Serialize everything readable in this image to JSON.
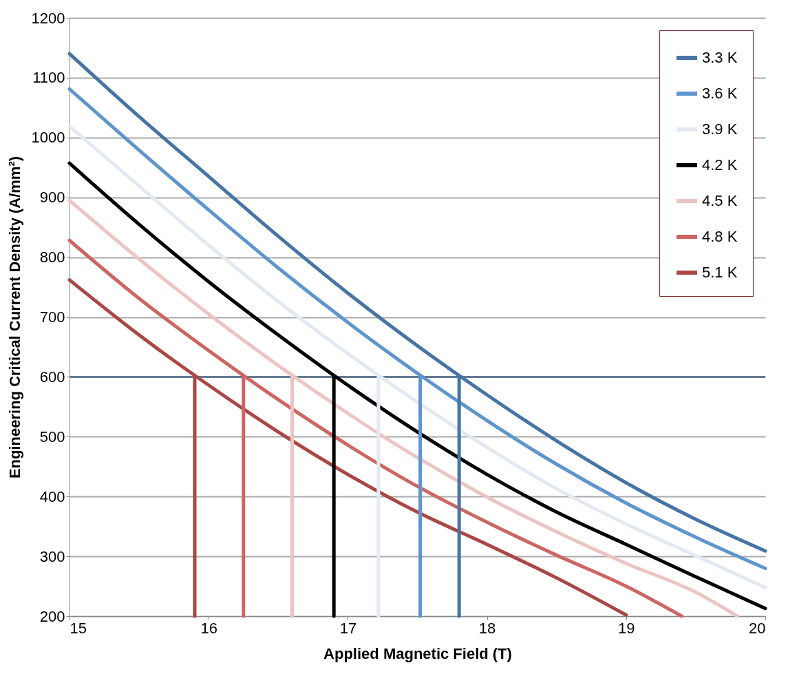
{
  "chart_data": {
    "type": "line",
    "xlabel": "Applied Magnetic Field (T)",
    "ylabel": "Engineering Critical Current Density (A/mm²)",
    "xlim": [
      15,
      20
    ],
    "xticks": [
      15,
      16,
      17,
      18,
      19,
      20
    ],
    "ylim": [
      200,
      1200
    ],
    "yticks": [
      200,
      300,
      400,
      500,
      600,
      700,
      800,
      900,
      1000,
      1100,
      1200
    ],
    "grid": "y",
    "legend": "top right",
    "ref_lines": [
      {
        "axis": "y",
        "value": 600,
        "color": "#4a6584"
      }
    ],
    "series": [
      {
        "name": "3.3 K",
        "color": "#4674a5",
        "x": [
          15,
          15.5,
          16,
          16.5,
          17,
          17.5,
          18,
          18.5,
          19,
          19.5,
          20
        ],
        "values": [
          1140,
          1035,
          935,
          835,
          740,
          652,
          570,
          493,
          423,
          362,
          309
        ]
      },
      {
        "name": "3.6 K",
        "color": "#5f95cd",
        "x": [
          15,
          15.5,
          16,
          16.5,
          17,
          17.5,
          18,
          18.5,
          19,
          19.5,
          20
        ],
        "values": [
          1081,
          979,
          879,
          782,
          691,
          606,
          527,
          454,
          389,
          332,
          280
        ]
      },
      {
        "name": "3.9 K",
        "color": "#e3e9f3",
        "x": [
          15,
          15.5,
          16,
          16.5,
          17,
          17.5,
          18,
          18.5,
          19,
          19.5,
          20
        ],
        "values": [
          1019,
          919,
          820,
          726,
          639,
          558,
          482,
          413,
          354,
          301,
          248
        ]
      },
      {
        "name": "4.2 K",
        "color": "#000000",
        "x": [
          15,
          15.5,
          16,
          16.5,
          17,
          17.5,
          18,
          18.5,
          19,
          19.5,
          20
        ],
        "values": [
          957,
          855,
          759,
          670,
          586,
          508,
          437,
          374,
          320,
          266,
          213
        ]
      },
      {
        "name": "4.5 K",
        "color": "#ecc4c2",
        "x": [
          15,
          15.5,
          16,
          16.5,
          17,
          17.5,
          18,
          18.5,
          19,
          19.5,
          19.8
        ],
        "values": [
          895,
          797,
          705,
          619,
          539,
          465,
          399,
          341,
          288,
          240,
          200
        ]
      },
      {
        "name": "4.8 K",
        "color": "#cd6663",
        "x": [
          15,
          15.5,
          16,
          16.5,
          17,
          17.5,
          18,
          18.5,
          19,
          19.4
        ],
        "values": [
          828,
          731,
          644,
          562,
          486,
          417,
          357,
          302,
          250,
          200
        ]
      },
      {
        "name": "5.1 K",
        "color": "#aa4744",
        "x": [
          15,
          15.5,
          16,
          16.5,
          17,
          17.5,
          18,
          18.5,
          19
        ],
        "values": [
          762,
          670,
          586,
          508,
          437,
          374,
          320,
          264,
          202
        ]
      },
      {
        "type": "line",
        "color": "#aa4744",
        "x": [
          15.9,
          15.9
        ],
        "values": [
          200,
          600
        ]
      },
      {
        "type": "line",
        "color": "#cd6663",
        "x": [
          16.25,
          16.25
        ],
        "values": [
          200,
          600
        ]
      },
      {
        "type": "line",
        "color": "#ecc4c2",
        "x": [
          16.6,
          16.6
        ],
        "values": [
          200,
          600
        ]
      },
      {
        "type": "line",
        "color": "#000000",
        "x": [
          16.9,
          16.9
        ],
        "values": [
          200,
          600
        ]
      },
      {
        "type": "line",
        "color": "#e3e9f3",
        "x": [
          17.22,
          17.22
        ],
        "values": [
          200,
          600
        ]
      },
      {
        "type": "line",
        "color": "#5f95cd",
        "x": [
          17.52,
          17.52
        ],
        "values": [
          200,
          600
        ]
      },
      {
        "type": "line",
        "color": "#4674a5",
        "x": [
          17.8,
          17.8
        ],
        "values": [
          200,
          600
        ]
      }
    ]
  }
}
